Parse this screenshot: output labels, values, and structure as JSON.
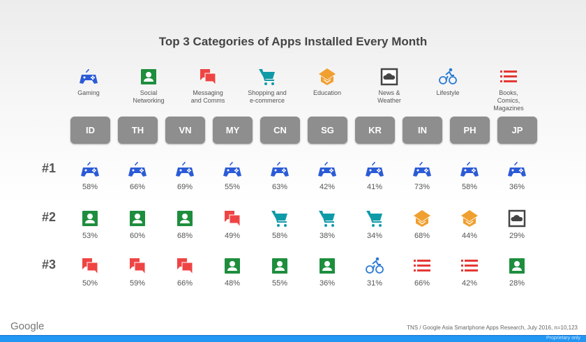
{
  "title": "Top 3 Categories of Apps Installed Every Month",
  "categories": [
    {
      "id": "gaming",
      "label": [
        "Gaming"
      ],
      "icon": "gamepad-icon"
    },
    {
      "id": "social",
      "label": [
        "Social",
        "Networking"
      ],
      "icon": "contact-card-icon"
    },
    {
      "id": "messaging",
      "label": [
        "Messaging",
        "and Comms"
      ],
      "icon": "chat-bubbles-icon"
    },
    {
      "id": "shopping",
      "label": [
        "Shopping and",
        "e-commerce"
      ],
      "icon": "shopping-cart-icon"
    },
    {
      "id": "education",
      "label": [
        "Education"
      ],
      "icon": "graduation-cap-icon"
    },
    {
      "id": "news",
      "label": [
        "News &",
        "Weather"
      ],
      "icon": "cloud-icon"
    },
    {
      "id": "lifestyle",
      "label": [
        "Lifestyle"
      ],
      "icon": "bicycle-icon"
    },
    {
      "id": "books",
      "label": [
        "Books,",
        "Comics,",
        "Magazines"
      ],
      "icon": "list-icon"
    }
  ],
  "countries": [
    "ID",
    "TH",
    "VN",
    "MY",
    "CN",
    "SG",
    "KR",
    "IN",
    "PH",
    "JP"
  ],
  "ranks": [
    {
      "label": "#1",
      "cells": [
        [
          "gaming",
          "58%"
        ],
        [
          "gaming",
          "66%"
        ],
        [
          "gaming",
          "69%"
        ],
        [
          "gaming",
          "55%"
        ],
        [
          "gaming",
          "63%"
        ],
        [
          "gaming",
          "42%"
        ],
        [
          "gaming",
          "41%"
        ],
        [
          "gaming",
          "73%"
        ],
        [
          "gaming",
          "58%"
        ],
        [
          "gaming",
          "36%"
        ]
      ]
    },
    {
      "label": "#2",
      "cells": [
        [
          "social",
          "53%"
        ],
        [
          "social",
          "60%"
        ],
        [
          "social",
          "68%"
        ],
        [
          "messaging",
          "49%"
        ],
        [
          "shopping",
          "58%"
        ],
        [
          "shopping",
          "38%"
        ],
        [
          "shopping",
          "34%"
        ],
        [
          "education",
          "68%"
        ],
        [
          "education",
          "44%"
        ],
        [
          "news",
          "29%"
        ]
      ]
    },
    {
      "label": "#3",
      "cells": [
        [
          "messaging",
          "50%"
        ],
        [
          "messaging",
          "59%"
        ],
        [
          "messaging",
          "66%"
        ],
        [
          "social",
          "48%"
        ],
        [
          "social",
          "55%"
        ],
        [
          "social",
          "36%"
        ],
        [
          "lifestyle",
          "31%"
        ],
        [
          "books",
          "66%"
        ],
        [
          "books",
          "42%"
        ],
        [
          "social",
          "28%"
        ]
      ]
    }
  ],
  "footer": {
    "logo": "Google",
    "source": "TNS / Google Asia Smartphone Apps Research, July 2016, n=10,123",
    "proprietary": "Proprietary only"
  },
  "colors": {
    "accent_bar": "#2196f3",
    "country_box": "#8e8e8e"
  }
}
